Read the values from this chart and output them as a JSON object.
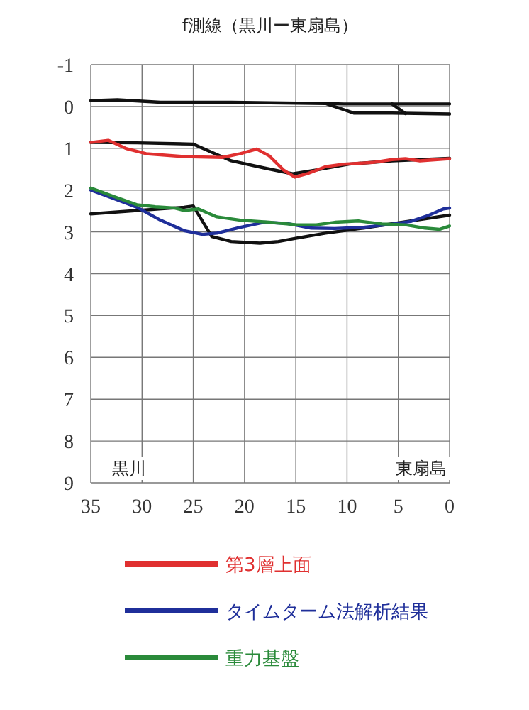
{
  "chart_data": {
    "type": "line",
    "title": "f測線（黒川ー東扇島）",
    "xlim": [
      35,
      0
    ],
    "ylim": [
      9,
      -1
    ],
    "xticks": [
      35,
      30,
      25,
      20,
      15,
      10,
      5,
      0
    ],
    "yticks": [
      -1,
      0,
      1,
      2,
      3,
      4,
      5,
      6,
      7,
      8,
      9
    ],
    "grid": true,
    "legend": "bottom",
    "marker": "none",
    "annotations": [
      "黒川",
      "東扇島"
    ],
    "series": [
      {
        "name": "第3層上面",
        "color": "#e03030",
        "x": [
          35,
          33.3,
          31.5,
          29.6,
          25.9,
          22.2,
          20.4,
          18.8,
          17.6,
          16.2,
          15.1,
          13.9,
          12.1,
          10.3,
          7.5,
          5.6,
          4.3,
          2.9,
          0
        ],
        "values": [
          0.86,
          0.81,
          1.01,
          1.13,
          1.2,
          1.22,
          1.13,
          1.02,
          1.18,
          1.52,
          1.69,
          1.61,
          1.44,
          1.38,
          1.34,
          1.27,
          1.25,
          1.3,
          1.25
        ]
      },
      {
        "name": "タイムターム法解析結果",
        "color": "#1f2f9a",
        "x": [
          35,
          32.8,
          30.5,
          28.2,
          25.9,
          24.1,
          22.7,
          20.4,
          18.1,
          15.8,
          13.5,
          11.2,
          8.4,
          6.1,
          3.8,
          2.0,
          0.6,
          0
        ],
        "values": [
          2.0,
          2.2,
          2.41,
          2.72,
          2.97,
          3.06,
          3.03,
          2.89,
          2.77,
          2.8,
          2.91,
          2.92,
          2.89,
          2.83,
          2.75,
          2.6,
          2.45,
          2.43
        ]
      },
      {
        "name": "重力基盤",
        "color": "#2a8a3a",
        "x": [
          35,
          32.8,
          30.5,
          28.7,
          26.8,
          25.9,
          24.5,
          22.7,
          20.4,
          17.6,
          14.9,
          13.0,
          11.2,
          8.9,
          6.6,
          4.3,
          2.4,
          1.0,
          0
        ],
        "values": [
          1.95,
          2.15,
          2.35,
          2.4,
          2.43,
          2.49,
          2.45,
          2.64,
          2.72,
          2.77,
          2.83,
          2.83,
          2.77,
          2.74,
          2.81,
          2.83,
          2.91,
          2.94,
          2.86
        ]
      },
      {
        "color": "#111111",
        "x": [
          35,
          32.4,
          28.2,
          21.3,
          14.9,
          12.1,
          10.3,
          0
        ],
        "values": [
          -0.14,
          -0.16,
          -0.1,
          -0.1,
          -0.08,
          -0.07,
          -0.06,
          -0.06
        ]
      },
      {
        "color": "#111111",
        "x": [
          12.1,
          9.3,
          5.6,
          0
        ],
        "values": [
          -0.07,
          0.16,
          0.16,
          0.18
        ]
      },
      {
        "color": "#111111",
        "x": [
          5.6,
          4.3
        ],
        "values": [
          -0.06,
          0.17
        ]
      },
      {
        "color": "#111111",
        "x": [
          35,
          30.5,
          25,
          21.3,
          18.1,
          15.3,
          13.0,
          9.8,
          5.6,
          0
        ],
        "values": [
          0.86,
          0.87,
          0.9,
          1.3,
          1.47,
          1.61,
          1.52,
          1.38,
          1.3,
          1.24
        ]
      },
      {
        "color": "#111111",
        "x": [
          35,
          30.5,
          25.9,
          25,
          23.2,
          21.3,
          18.5,
          16.7,
          14.9,
          12.1,
          8.4,
          4.7,
          0
        ],
        "values": [
          2.57,
          2.49,
          2.41,
          2.38,
          3.11,
          3.23,
          3.27,
          3.23,
          3.15,
          3.03,
          2.91,
          2.77,
          2.6
        ]
      }
    ]
  }
}
